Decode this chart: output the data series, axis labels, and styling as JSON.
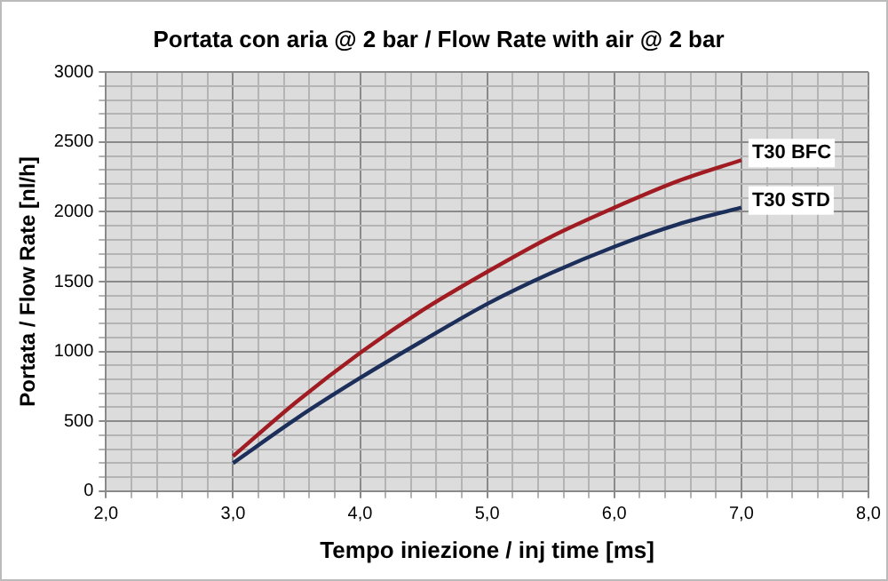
{
  "chart_data": {
    "type": "line",
    "title": "Portata con aria @ 2 bar / Flow Rate with air @ 2 bar",
    "xlabel": "Tempo iniezione / inj time [ms]",
    "ylabel": "Portata / Flow Rate [nl/h]",
    "x": [
      3.0,
      3.5,
      4.0,
      4.5,
      5.0,
      5.5,
      6.0,
      6.5,
      7.0
    ],
    "series": [
      {
        "name": "T30 BFC",
        "color": "#a01c22",
        "values": [
          250,
          640,
          990,
          1300,
          1570,
          1820,
          2030,
          2220,
          2370
        ]
      },
      {
        "name": "T30 STD",
        "color": "#1c2e5a",
        "values": [
          200,
          520,
          810,
          1080,
          1340,
          1560,
          1750,
          1910,
          2030
        ]
      }
    ],
    "xlim": [
      2.0,
      8.0
    ],
    "xticks": [
      {
        "value": 2.0,
        "label": "2,0"
      },
      {
        "value": 2.2,
        "label": null
      },
      {
        "value": 2.4,
        "label": null
      },
      {
        "value": 2.6,
        "label": null
      },
      {
        "value": 2.8,
        "label": null
      },
      {
        "value": 3.0,
        "label": "3,0"
      },
      {
        "value": 3.2,
        "label": null
      },
      {
        "value": 3.4,
        "label": null
      },
      {
        "value": 3.6,
        "label": null
      },
      {
        "value": 3.8,
        "label": null
      },
      {
        "value": 4.0,
        "label": "4,0"
      },
      {
        "value": 4.2,
        "label": null
      },
      {
        "value": 4.4,
        "label": null
      },
      {
        "value": 4.6,
        "label": null
      },
      {
        "value": 4.8,
        "label": null
      },
      {
        "value": 5.0,
        "label": "5,0"
      },
      {
        "value": 5.2,
        "label": null
      },
      {
        "value": 5.4,
        "label": null
      },
      {
        "value": 5.6,
        "label": null
      },
      {
        "value": 5.8,
        "label": null
      },
      {
        "value": 6.0,
        "label": "6,0"
      },
      {
        "value": 6.2,
        "label": null
      },
      {
        "value": 6.4,
        "label": null
      },
      {
        "value": 6.6,
        "label": null
      },
      {
        "value": 6.8,
        "label": null
      },
      {
        "value": 7.0,
        "label": "7,0"
      },
      {
        "value": 7.2,
        "label": null
      },
      {
        "value": 7.4,
        "label": null
      },
      {
        "value": 7.6,
        "label": null
      },
      {
        "value": 7.8,
        "label": null
      },
      {
        "value": 8.0,
        "label": "8,0"
      }
    ],
    "ylim": [
      0,
      3000
    ],
    "yticks": [
      0,
      {
        "value": 100,
        "label": null
      },
      {
        "value": 200,
        "label": null
      },
      {
        "value": 300,
        "label": null
      },
      {
        "value": 400,
        "label": null
      },
      500,
      {
        "value": 600,
        "label": null
      },
      {
        "value": 700,
        "label": null
      },
      {
        "value": 800,
        "label": null
      },
      {
        "value": 900,
        "label": null
      },
      1000,
      {
        "value": 1100,
        "label": null
      },
      {
        "value": 1200,
        "label": null
      },
      {
        "value": 1300,
        "label": null
      },
      {
        "value": 1400,
        "label": null
      },
      1500,
      {
        "value": 1600,
        "label": null
      },
      {
        "value": 1700,
        "label": null
      },
      {
        "value": 1800,
        "label": null
      },
      {
        "value": 1900,
        "label": null
      },
      2000,
      {
        "value": 2100,
        "label": null
      },
      {
        "value": 2200,
        "label": null
      },
      {
        "value": 2300,
        "label": null
      },
      {
        "value": 2400,
        "label": null
      },
      2500,
      {
        "value": 2600,
        "label": null
      },
      {
        "value": 2700,
        "label": null
      },
      {
        "value": 2800,
        "label": null
      },
      {
        "value": 2900,
        "label": null
      },
      3000
    ],
    "grid": true,
    "legend": false,
    "marker": "none",
    "line_style": "solid"
  }
}
